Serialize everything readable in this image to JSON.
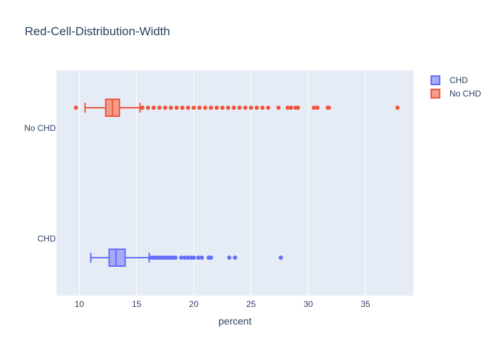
{
  "chart_data": {
    "type": "box",
    "orientation": "horizontal",
    "title": "Red-Cell-Distribution-Width",
    "xlabel": "percent",
    "ylabel": "",
    "xlim": [
      8,
      39.2
    ],
    "xticks": [
      10,
      15,
      20,
      25,
      30,
      35
    ],
    "categories": [
      "CHD",
      "No CHD"
    ],
    "legend_position": "top-right",
    "grid": true,
    "series": [
      {
        "name": "CHD",
        "category": "CHD",
        "color": "#636efa",
        "fill": "#a5abf6",
        "whisker_low": 11.0,
        "q1": 12.6,
        "median": 13.2,
        "q3": 14.0,
        "whisker_high": 16.1,
        "outliers": [
          16.2,
          16.4,
          16.6,
          16.8,
          17.0,
          17.2,
          17.4,
          17.6,
          17.8,
          18.0,
          18.2,
          18.4,
          18.9,
          19.2,
          19.5,
          19.8,
          20.0,
          20.4,
          20.7,
          21.3,
          21.5,
          23.1,
          23.6,
          27.6
        ]
      },
      {
        "name": "No CHD",
        "category": "No CHD",
        "color": "#ef553b",
        "fill": "#f49b8b",
        "whisker_low": 10.5,
        "q1": 12.3,
        "median": 12.9,
        "q3": 13.5,
        "whisker_high": 15.3,
        "outliers": [
          9.7,
          15.5,
          16.0,
          16.5,
          17.0,
          17.5,
          18.0,
          18.5,
          19.0,
          19.5,
          20.0,
          20.5,
          21.0,
          21.5,
          22.0,
          22.5,
          23.0,
          23.5,
          24.0,
          24.5,
          25.0,
          25.5,
          26.0,
          26.5,
          27.4,
          28.2,
          28.5,
          28.9,
          29.1,
          30.5,
          30.8,
          31.7,
          31.8,
          37.8
        ]
      }
    ]
  }
}
